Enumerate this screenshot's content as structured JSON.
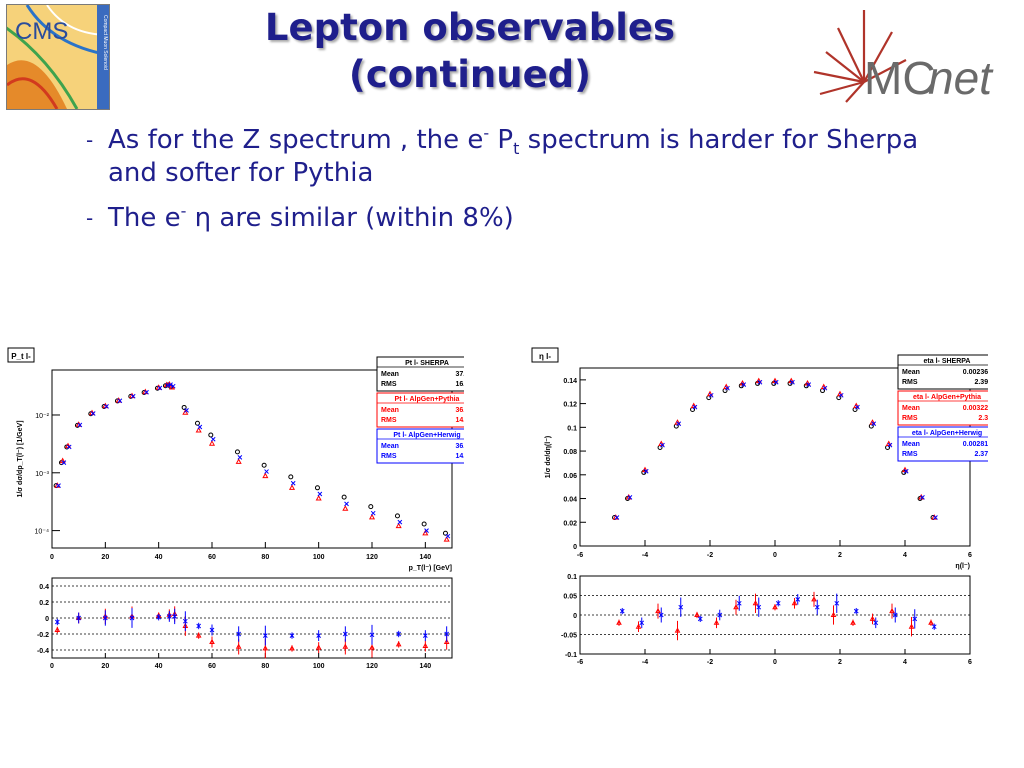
{
  "slide": {
    "title_line1": "Lepton observables",
    "title_line2": "(continued)",
    "bullets": [
      {
        "dash": "-",
        "pre": "As for the Z spectrum , the e",
        "sup": "-",
        "mid": " P",
        "sub": "t",
        "post": " spectrum is harder for Sherpa and softer for Pythia"
      },
      {
        "dash": "-",
        "pre": "The e",
        "sup": "-",
        "post": " η are similar (within 8%)"
      }
    ],
    "logos": {
      "cms_text": "CMS",
      "cms_subtext": "Compact Muon Solenoid",
      "mcnet_mc": "MC",
      "mcnet_net": "net"
    }
  },
  "colors": {
    "title": "#1f1f8c",
    "sherpa": "#000000",
    "pythia": "#ff0000",
    "herwig": "#0000ff"
  },
  "chart_data": [
    {
      "type": "scatter",
      "panel_label": "P_t l-",
      "ylabel": "1/σ dσ/dp_T(l⁻) [1/GeV]",
      "xlabel": "p_T(l⁻) [GeV]",
      "log_y": true,
      "xlim": [
        0,
        150
      ],
      "ylim": [
        5e-05,
        0.06
      ],
      "x_ticks": [
        "0",
        "20",
        "40",
        "60",
        "80",
        "100",
        "120",
        "140"
      ],
      "y_ticks": [
        "10⁻⁴",
        "10⁻³",
        "10⁻²"
      ],
      "series": [
        {
          "name": "Pt l- SHERPA",
          "mean": "37.65",
          "rms": "16.03",
          "x": [
            2,
            4,
            6,
            10,
            15,
            20,
            25,
            30,
            35,
            40,
            43,
            44,
            45,
            50,
            55,
            60,
            70,
            80,
            90,
            100,
            110,
            120,
            130,
            140,
            148
          ],
          "y": [
            0.0006,
            0.0015,
            0.0028,
            0.0066,
            0.0105,
            0.014,
            0.0175,
            0.021,
            0.0245,
            0.029,
            0.032,
            0.033,
            0.031,
            0.0135,
            0.0072,
            0.0045,
            0.0023,
            0.00135,
            0.00085,
            0.00055,
            0.00038,
            0.00026,
            0.00018,
            0.00013,
            9e-05
          ]
        },
        {
          "name": "Pt l- AlpGen+Pythia",
          "mean": "36.52",
          "rms": "14.42",
          "x": [
            2,
            4,
            6,
            10,
            15,
            20,
            25,
            30,
            35,
            40,
            43,
            44,
            45,
            50,
            55,
            60,
            70,
            80,
            90,
            100,
            110,
            120,
            130,
            140,
            148
          ],
          "y": [
            0.0006,
            0.0016,
            0.0029,
            0.0068,
            0.0108,
            0.0143,
            0.0178,
            0.0213,
            0.025,
            0.0297,
            0.033,
            0.0338,
            0.03,
            0.011,
            0.0054,
            0.0032,
            0.00155,
            0.00088,
            0.00055,
            0.00036,
            0.00024,
            0.00017,
            0.00012,
            9e-05,
            7e-05
          ]
        },
        {
          "name": "Pt l- AlpGen+Herwig",
          "mean": "36.83",
          "rms": "14.81",
          "x": [
            2,
            4,
            6,
            10,
            15,
            20,
            25,
            30,
            35,
            40,
            43,
            44,
            45,
            50,
            55,
            60,
            70,
            80,
            90,
            100,
            110,
            120,
            130,
            140,
            148
          ],
          "y": [
            0.0006,
            0.0015,
            0.0028,
            0.0067,
            0.0106,
            0.0141,
            0.0176,
            0.0211,
            0.0247,
            0.0293,
            0.0325,
            0.0335,
            0.0315,
            0.012,
            0.0062,
            0.0038,
            0.00185,
            0.00105,
            0.00066,
            0.00043,
            0.00029,
            0.0002,
            0.00014,
            0.0001,
            8e-05
          ]
        }
      ],
      "ratio": {
        "xlim": [
          0,
          150
        ],
        "ylim": [
          -0.5,
          0.5
        ],
        "y_ticks": [
          "0.4",
          "0.2",
          "0",
          "-0.2",
          "-0.4"
        ],
        "x_ticks": [
          "0",
          "20",
          "40",
          "60",
          "80",
          "100",
          "120",
          "140"
        ],
        "series": [
          {
            "name": "AlpGen+Pythia",
            "x": [
              2,
              10,
              20,
              30,
              40,
              44,
              46,
              50,
              55,
              60,
              70,
              80,
              90,
              100,
              110,
              120,
              130,
              140,
              148
            ],
            "y": [
              -0.15,
              0.0,
              0.02,
              0.02,
              0.03,
              0.04,
              0.05,
              -0.1,
              -0.22,
              -0.3,
              -0.36,
              -0.38,
              -0.38,
              -0.37,
              -0.36,
              -0.37,
              -0.33,
              -0.35,
              -0.3
            ]
          },
          {
            "name": "AlpGen+Herwig",
            "x": [
              2,
              10,
              20,
              30,
              40,
              44,
              46,
              50,
              55,
              60,
              70,
              80,
              90,
              100,
              110,
              120,
              130,
              140,
              148
            ],
            "y": [
              -0.05,
              0.0,
              0.0,
              0.0,
              0.01,
              0.02,
              0.02,
              -0.04,
              -0.1,
              -0.15,
              -0.2,
              -0.22,
              -0.22,
              -0.22,
              -0.2,
              -0.21,
              -0.2,
              -0.22,
              -0.2
            ]
          }
        ]
      }
    },
    {
      "type": "scatter",
      "panel_label": "η l-",
      "ylabel": "1/σ dσ/dη(l⁻)",
      "xlabel": "η(l⁻)",
      "log_y": false,
      "xlim": [
        -6,
        6
      ],
      "ylim": [
        0,
        0.15
      ],
      "x_ticks": [
        "-6",
        "-4",
        "-2",
        "0",
        "2",
        "4",
        "6"
      ],
      "y_ticks": [
        "0",
        "0.02",
        "0.04",
        "0.06",
        "0.08",
        "0.1",
        "0.12",
        "0.14"
      ],
      "series": [
        {
          "name": "eta l- SHERPA",
          "mean": "0.002368",
          "rms": "2.395",
          "x": [
            -4.9,
            -4.5,
            -4,
            -3.5,
            -3,
            -2.5,
            -2,
            -1.5,
            -1,
            -0.5,
            0,
            0.5,
            1,
            1.5,
            2,
            2.5,
            3,
            3.5,
            4,
            4.5,
            4.9
          ],
          "y": [
            0.024,
            0.04,
            0.062,
            0.083,
            0.101,
            0.115,
            0.125,
            0.131,
            0.135,
            0.137,
            0.137,
            0.137,
            0.135,
            0.131,
            0.125,
            0.115,
            0.101,
            0.083,
            0.062,
            0.04,
            0.024
          ]
        },
        {
          "name": "eta l- AlpGen+Pythia",
          "mean": "0.003223",
          "rms": "2.37",
          "x": [
            -4.9,
            -4.5,
            -4,
            -3.5,
            -3,
            -2.5,
            -2,
            -1.5,
            -1,
            -0.5,
            0,
            0.5,
            1,
            1.5,
            2,
            2.5,
            3,
            3.5,
            4,
            4.5,
            4.9
          ],
          "y": [
            0.024,
            0.041,
            0.064,
            0.086,
            0.104,
            0.118,
            0.128,
            0.134,
            0.137,
            0.139,
            0.139,
            0.139,
            0.137,
            0.134,
            0.128,
            0.118,
            0.104,
            0.086,
            0.064,
            0.041,
            0.024
          ]
        },
        {
          "name": "eta l- AlpGen+Herwig",
          "mean": "0.002816",
          "rms": "2.374",
          "x": [
            -4.9,
            -4.5,
            -4,
            -3.5,
            -3,
            -2.5,
            -2,
            -1.5,
            -1,
            -0.5,
            0,
            0.5,
            1,
            1.5,
            2,
            2.5,
            3,
            3.5,
            4,
            4.5,
            4.9
          ],
          "y": [
            0.024,
            0.041,
            0.063,
            0.085,
            0.103,
            0.117,
            0.127,
            0.133,
            0.136,
            0.138,
            0.138,
            0.138,
            0.136,
            0.133,
            0.127,
            0.117,
            0.103,
            0.085,
            0.063,
            0.041,
            0.024
          ]
        }
      ],
      "ratio": {
        "xlim": [
          -6,
          6
        ],
        "ylim": [
          -0.1,
          0.1
        ],
        "y_ticks": [
          "0.1",
          "0.05",
          "0",
          "-0.05",
          "-0.1"
        ],
        "x_ticks": [
          "-6",
          "-4",
          "-2",
          "0",
          "2",
          "4",
          "6"
        ],
        "series": [
          {
            "name": "AlpGen+Pythia",
            "x": [
              -4.8,
              -4.2,
              -3.6,
              -3.0,
              -2.4,
              -1.8,
              -1.2,
              -0.6,
              0,
              0.6,
              1.2,
              1.8,
              2.4,
              3.0,
              3.6,
              4.2,
              4.8
            ],
            "y": [
              -0.02,
              -0.03,
              0.01,
              -0.04,
              0.0,
              -0.02,
              0.02,
              0.03,
              0.02,
              0.03,
              0.04,
              0.0,
              -0.02,
              -0.01,
              0.01,
              -0.03,
              -0.02
            ]
          },
          {
            "name": "AlpGen+Herwig",
            "x": [
              -4.7,
              -4.1,
              -3.5,
              -2.9,
              -2.3,
              -1.7,
              -1.1,
              -0.5,
              0.1,
              0.7,
              1.3,
              1.9,
              2.5,
              3.1,
              3.7,
              4.3,
              4.9
            ],
            "y": [
              0.01,
              -0.02,
              0.0,
              0.02,
              -0.01,
              0.0,
              0.03,
              0.02,
              0.03,
              0.04,
              0.02,
              0.03,
              0.01,
              -0.02,
              0.0,
              -0.01,
              -0.03
            ]
          }
        ]
      }
    }
  ]
}
